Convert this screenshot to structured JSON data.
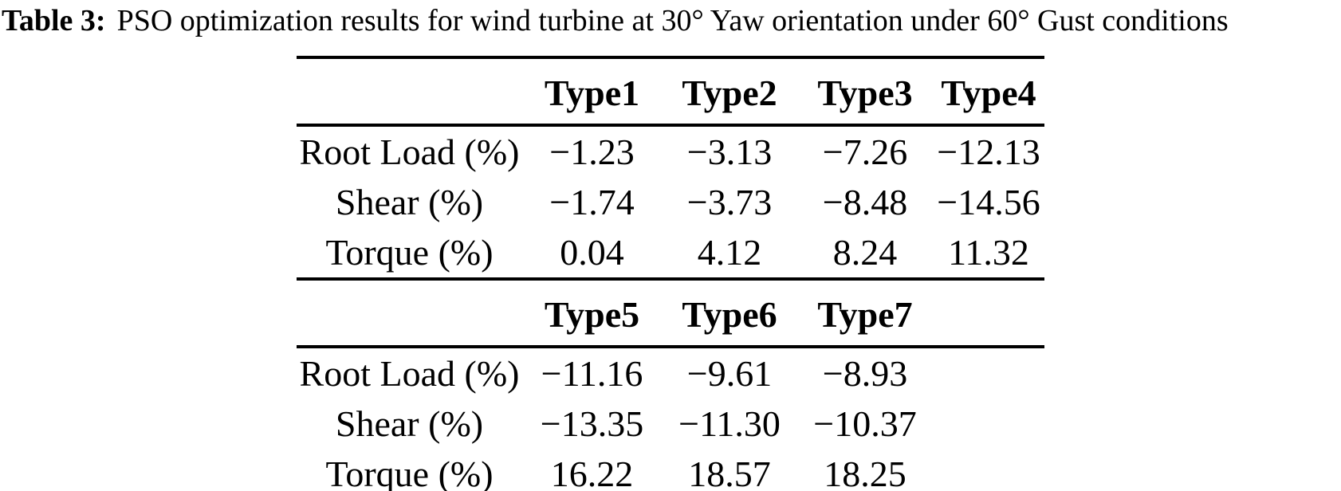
{
  "colors": {
    "background": "#ffffff",
    "text": "#000000",
    "rule": "#000000"
  },
  "caption": {
    "label": "Table 3:",
    "text": "PSO optimization results for wind turbine at 30° Yaw orientation under 60° Gust conditions"
  },
  "table": {
    "sections": [
      {
        "col_headers": [
          "Type1",
          "Type2",
          "Type3",
          "Type4"
        ],
        "rows": [
          {
            "label": "Root Load (%)",
            "values": [
              "−1.23",
              "−3.13",
              "−7.26",
              "−12.13"
            ]
          },
          {
            "label": "Shear (%)",
            "values": [
              "−1.74",
              "−3.73",
              "−8.48",
              "−14.56"
            ]
          },
          {
            "label": "Torque (%)",
            "values": [
              "0.04",
              "4.12",
              "8.24",
              "11.32"
            ]
          }
        ]
      },
      {
        "col_headers": [
          "Type5",
          "Type6",
          "Type7",
          ""
        ],
        "rows": [
          {
            "label": "Root Load (%)",
            "values": [
              "−11.16",
              "−9.61",
              "−8.93",
              ""
            ]
          },
          {
            "label": "Shear (%)",
            "values": [
              "−13.35",
              "−11.30",
              "−10.37",
              ""
            ]
          },
          {
            "label": "Torque (%)",
            "values": [
              "16.22",
              "18.57",
              "18.25",
              ""
            ]
          }
        ]
      }
    ]
  }
}
